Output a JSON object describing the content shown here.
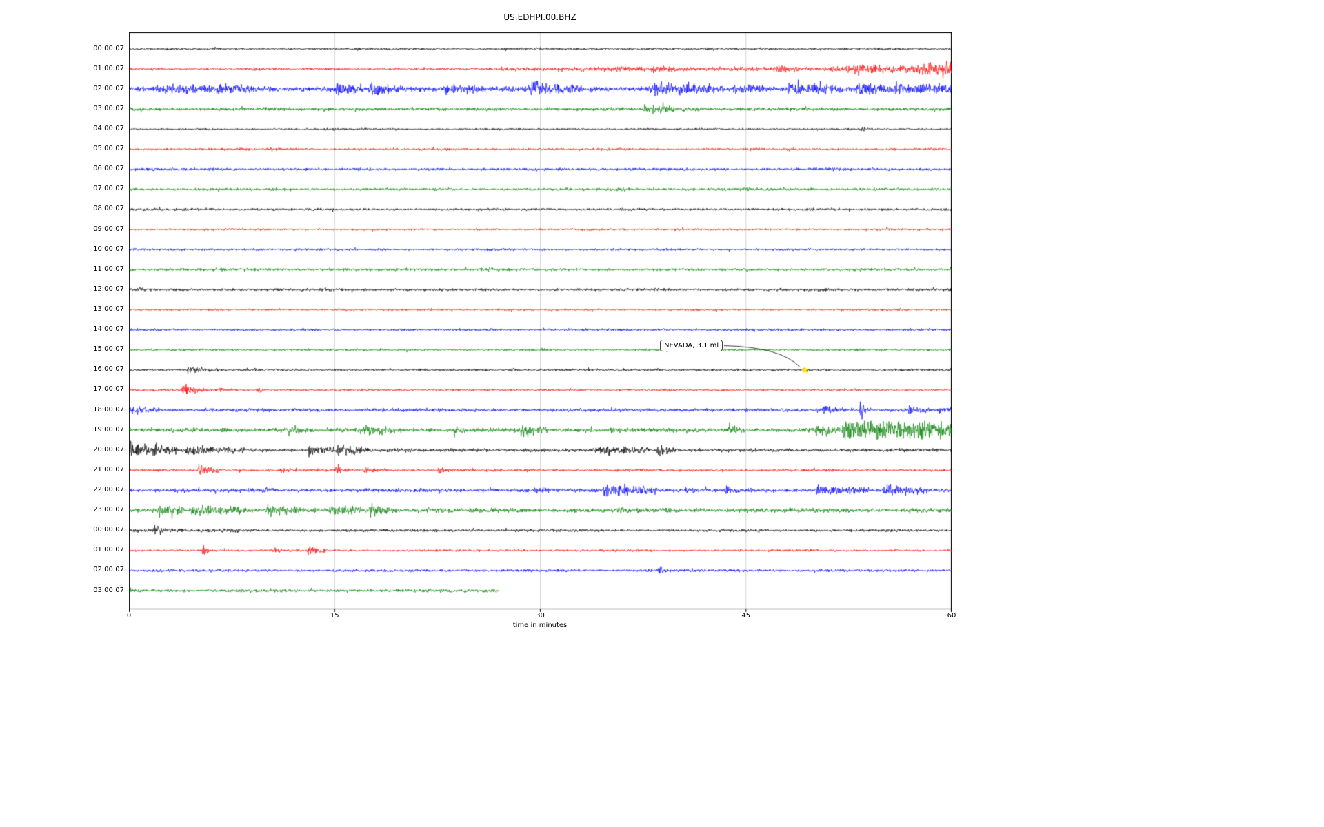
{
  "chart_data": {
    "type": "line",
    "title": "US.EDHPI.00.BHZ",
    "xlabel": "time in minutes",
    "xlim": [
      0,
      60
    ],
    "x_ticks": [
      0,
      15,
      30,
      45,
      60
    ],
    "grid_minutes": [
      15,
      30,
      45
    ],
    "grid_color": "#c6c6c6",
    "annotation": {
      "text": "NEVADA, 3.1 ml",
      "row": 16,
      "minute": 49.3,
      "marker": "star",
      "marker_color": "#ffe600"
    },
    "rows": [
      {
        "label": "00:00:07",
        "color": "#000000",
        "base": 1.5,
        "events": []
      },
      {
        "label": "01:00:07",
        "color": "#ff0000",
        "base": 1.6,
        "events": [
          {
            "s": 9,
            "e": 10,
            "a": 1.5,
            "k": 2
          },
          {
            "s": 27,
            "e": 60,
            "a": 1.5,
            "k": 0
          },
          {
            "s": 38,
            "e": 41,
            "a": 2,
            "k": 2
          },
          {
            "s": 47,
            "e": 49,
            "a": 2.5,
            "k": 2
          },
          {
            "s": 52,
            "e": 60,
            "a": 3,
            "k": 0
          },
          {
            "s": 57.5,
            "e": 60,
            "a": 4,
            "k": 0
          }
        ]
      },
      {
        "label": "02:00:07",
        "color": "#0000ff",
        "base": 3.5,
        "events": [
          {
            "s": 2,
            "e": 5,
            "a": 4,
            "k": 1
          },
          {
            "s": 5.5,
            "e": 9,
            "a": 5,
            "k": 1
          },
          {
            "s": 15,
            "e": 17,
            "a": 8,
            "k": 1.5
          },
          {
            "s": 17.5,
            "e": 20,
            "a": 9,
            "k": 2
          },
          {
            "s": 23,
            "e": 26,
            "a": 5,
            "k": 1
          },
          {
            "s": 29,
            "e": 33,
            "a": 6,
            "k": 1
          },
          {
            "s": 38,
            "e": 43,
            "a": 7,
            "k": 1
          },
          {
            "s": 44,
            "e": 47,
            "a": 4,
            "k": 1
          },
          {
            "s": 48,
            "e": 52,
            "a": 6,
            "k": 1
          },
          {
            "s": 53,
            "e": 56,
            "a": 7,
            "k": 1.5
          },
          {
            "s": 56,
            "e": 60,
            "a": 4,
            "k": 0
          }
        ]
      },
      {
        "label": "03:00:07",
        "color": "#008000",
        "base": 2.2,
        "events": [
          {
            "s": 37.5,
            "e": 42,
            "a": 6,
            "k": 2.5
          }
        ]
      },
      {
        "label": "04:00:07",
        "color": "#000000",
        "base": 1.3,
        "events": [
          {
            "s": 53.3,
            "e": 53.9,
            "a": 5,
            "k": 4
          }
        ]
      },
      {
        "label": "05:00:07",
        "color": "#ff0000",
        "base": 1.5,
        "events": []
      },
      {
        "label": "06:00:07",
        "color": "#0000ff",
        "base": 1.8,
        "events": []
      },
      {
        "label": "07:00:07",
        "color": "#008000",
        "base": 1.8,
        "events": [
          {
            "s": 35.5,
            "e": 37,
            "a": 1.5,
            "k": 2
          }
        ]
      },
      {
        "label": "08:00:07",
        "color": "#000000",
        "base": 1.6,
        "events": []
      },
      {
        "label": "09:00:07",
        "color": "#ff0000",
        "base": 1.3,
        "events": []
      },
      {
        "label": "10:00:07",
        "color": "#0000ff",
        "base": 1.5,
        "events": []
      },
      {
        "label": "11:00:07",
        "color": "#008000",
        "base": 1.8,
        "events": [
          {
            "s": 25.5,
            "e": 27,
            "a": 1.5,
            "k": 2
          }
        ]
      },
      {
        "label": "12:00:07",
        "color": "#000000",
        "base": 1.8,
        "events": []
      },
      {
        "label": "13:00:07",
        "color": "#ff0000",
        "base": 1.3,
        "events": []
      },
      {
        "label": "14:00:07",
        "color": "#0000ff",
        "base": 1.6,
        "events": []
      },
      {
        "label": "15:00:07",
        "color": "#008000",
        "base": 1.5,
        "events": []
      },
      {
        "label": "16:00:07",
        "color": "#000000",
        "base": 1.6,
        "events": [
          {
            "s": 4.2,
            "e": 6.5,
            "a": 6,
            "k": 2.5
          },
          {
            "s": 27.8,
            "e": 28.4,
            "a": 5.5,
            "k": 4
          },
          {
            "s": 49.1,
            "e": 49.9,
            "a": 2,
            "k": 3
          }
        ]
      },
      {
        "label": "17:00:07",
        "color": "#ff0000",
        "base": 1.5,
        "events": [
          {
            "s": 3.8,
            "e": 5.8,
            "a": 8,
            "k": 2.5
          },
          {
            "s": 6.5,
            "e": 8,
            "a": 2,
            "k": 2
          },
          {
            "s": 9.3,
            "e": 10.3,
            "a": 4,
            "k": 3
          }
        ]
      },
      {
        "label": "18:00:07",
        "color": "#0000ff",
        "base": 2.3,
        "events": [
          {
            "s": 0,
            "e": 2.5,
            "a": 4,
            "k": 1
          },
          {
            "s": 50.5,
            "e": 52.5,
            "a": 5,
            "k": 2
          },
          {
            "s": 53.2,
            "e": 54.1,
            "a": 11,
            "k": 3
          },
          {
            "s": 56.8,
            "e": 58.2,
            "a": 7,
            "k": 2
          },
          {
            "s": 59,
            "e": 60,
            "a": 3,
            "k": 0
          }
        ]
      },
      {
        "label": "19:00:07",
        "color": "#008000",
        "base": 2.8,
        "events": [
          {
            "s": 11.5,
            "e": 13,
            "a": 5,
            "k": 2
          },
          {
            "s": 17,
            "e": 19.5,
            "a": 6,
            "k": 1.5
          },
          {
            "s": 23.5,
            "e": 24.5,
            "a": 4,
            "k": 2
          },
          {
            "s": 28.5,
            "e": 30.5,
            "a": 7,
            "k": 1.5
          },
          {
            "s": 35,
            "e": 36,
            "a": 3,
            "k": 2
          },
          {
            "s": 43.5,
            "e": 45,
            "a": 5,
            "k": 2
          },
          {
            "s": 50,
            "e": 52,
            "a": 6,
            "k": 1
          },
          {
            "s": 52,
            "e": 60,
            "a": 10,
            "k": 0
          },
          {
            "s": 57.4,
            "e": 58.2,
            "a": 7,
            "k": 1
          }
        ]
      },
      {
        "label": "20:00:07",
        "color": "#000000",
        "base": 2.3,
        "events": [
          {
            "s": 0,
            "e": 3.5,
            "a": 8,
            "k": 1
          },
          {
            "s": 4,
            "e": 8.5,
            "a": 5,
            "k": 1
          },
          {
            "s": 13,
            "e": 15,
            "a": 7,
            "k": 1
          },
          {
            "s": 15,
            "e": 17.5,
            "a": 8,
            "k": 1.5
          },
          {
            "s": 34,
            "e": 38,
            "a": 5,
            "k": 1
          },
          {
            "s": 38.5,
            "e": 39.9,
            "a": 9,
            "k": 2.5
          }
        ]
      },
      {
        "label": "21:00:07",
        "color": "#ff0000",
        "base": 1.7,
        "events": [
          {
            "s": 5,
            "e": 7,
            "a": 7,
            "k": 2
          },
          {
            "s": 11,
            "e": 12,
            "a": 3,
            "k": 2
          },
          {
            "s": 15,
            "e": 16,
            "a": 5,
            "k": 2
          },
          {
            "s": 17,
            "e": 18.5,
            "a": 5,
            "k": 2
          },
          {
            "s": 22.5,
            "e": 23.5,
            "a": 6,
            "k": 2.5
          }
        ]
      },
      {
        "label": "22:00:07",
        "color": "#0000ff",
        "base": 2.4,
        "events": [
          {
            "s": 9.8,
            "e": 10.6,
            "a": 3,
            "k": 2
          },
          {
            "s": 29.5,
            "e": 31,
            "a": 4,
            "k": 2
          },
          {
            "s": 34.5,
            "e": 38.5,
            "a": 7,
            "k": 1
          },
          {
            "s": 40.5,
            "e": 41.5,
            "a": 4,
            "k": 2
          },
          {
            "s": 43.5,
            "e": 44.5,
            "a": 4,
            "k": 2
          },
          {
            "s": 50,
            "e": 54,
            "a": 5,
            "k": 1
          },
          {
            "s": 55,
            "e": 58,
            "a": 6,
            "k": 1
          }
        ]
      },
      {
        "label": "23:00:07",
        "color": "#008000",
        "base": 2.8,
        "events": [
          {
            "s": 2,
            "e": 4,
            "a": 5,
            "k": 1
          },
          {
            "s": 4.5,
            "e": 8.5,
            "a": 6,
            "k": 1
          },
          {
            "s": 10,
            "e": 12.5,
            "a": 5,
            "k": 1
          },
          {
            "s": 14.5,
            "e": 17,
            "a": 6,
            "k": 1
          },
          {
            "s": 17.5,
            "e": 19.5,
            "a": 7,
            "k": 1.5
          },
          {
            "s": 35.5,
            "e": 36.5,
            "a": 3,
            "k": 2
          }
        ]
      },
      {
        "label": "00:00:07",
        "color": "#000000",
        "base": 1.8,
        "events": [
          {
            "s": 0,
            "e": 8,
            "a": 1.2,
            "k": 0
          },
          {
            "s": 1.8,
            "e": 2.9,
            "a": 7,
            "k": 3
          }
        ]
      },
      {
        "label": "01:00:07",
        "color": "#ff0000",
        "base": 1.5,
        "events": [
          {
            "s": 5.3,
            "e": 6.4,
            "a": 8,
            "k": 3
          },
          {
            "s": 10.6,
            "e": 11.3,
            "a": 4,
            "k": 3
          },
          {
            "s": 13,
            "e": 14.5,
            "a": 6,
            "k": 2
          },
          {
            "s": 38.8,
            "e": 39.6,
            "a": 3,
            "k": 3
          }
        ]
      },
      {
        "label": "02:00:07",
        "color": "#0000ff",
        "base": 1.8,
        "events": [
          {
            "s": 38.5,
            "e": 39.6,
            "a": 7,
            "k": 3
          }
        ]
      },
      {
        "label": "03:00:07",
        "color": "#008000",
        "base": 2.0,
        "extent": 0.45,
        "events": []
      }
    ]
  }
}
